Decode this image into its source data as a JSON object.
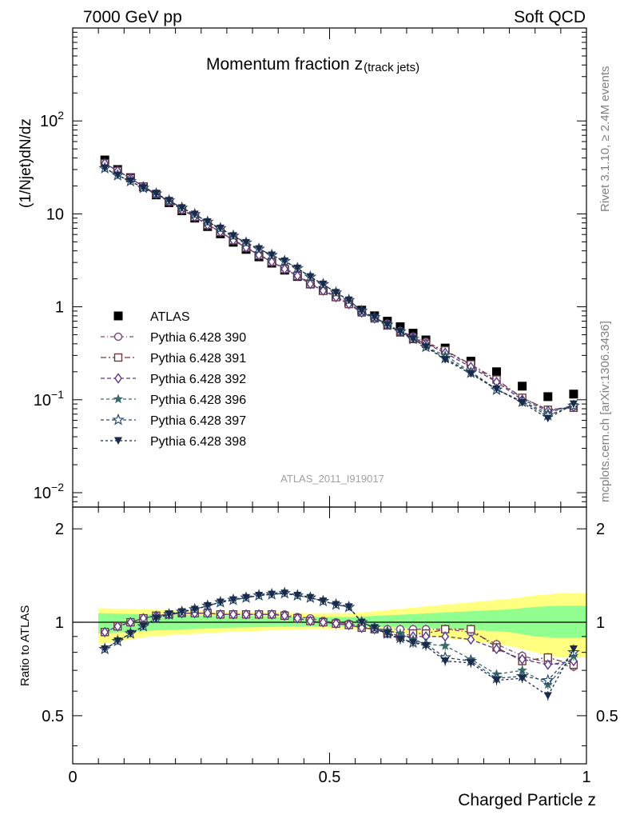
{
  "header": {
    "left": "7000 GeV pp",
    "right": "Soft QCD"
  },
  "side": {
    "top": "Rivet 3.1.10, ≥ 2.4M events",
    "bottom": "mcplots.cern.ch [arXiv:1306.3436]"
  },
  "watermark": "ATLAS_2011_I919017",
  "chart_data": [
    {
      "type": "scatter",
      "title": "Momentum fraction z",
      "title_sub": "(track jets)",
      "ylabel": "(1/Njet)dN/dz",
      "xlim": [
        0,
        1
      ],
      "ylim": [
        0.007,
        1000
      ],
      "yscale": "log",
      "yticks": [
        {
          "v": 0.01,
          "base": "10",
          "exp": "−2"
        },
        {
          "v": 0.1,
          "base": "10",
          "exp": "−1"
        },
        {
          "v": 1,
          "base": "1",
          "exp": ""
        },
        {
          "v": 10,
          "base": "10",
          "exp": ""
        },
        {
          "v": 100,
          "base": "10",
          "exp": "2"
        }
      ],
      "legend_position": "left-middle",
      "x": [
        0.0625,
        0.0875,
        0.1125,
        0.1375,
        0.1625,
        0.1875,
        0.2125,
        0.2375,
        0.2625,
        0.2875,
        0.3125,
        0.3375,
        0.3625,
        0.3875,
        0.4125,
        0.4375,
        0.4625,
        0.4875,
        0.5125,
        0.5375,
        0.5625,
        0.5875,
        0.6125,
        0.6375,
        0.6625,
        0.6875,
        0.725,
        0.775,
        0.825,
        0.875,
        0.925,
        0.975
      ],
      "series": [
        {
          "name": "ATLAS",
          "color": "#000000",
          "marker": "square-filled",
          "dash": "",
          "values": [
            38,
            30,
            24.5,
            19.5,
            16,
            13.2,
            10.8,
            9,
            7.3,
            6.1,
            4.95,
            4.15,
            3.45,
            2.95,
            2.48,
            2.12,
            1.76,
            1.5,
            1.29,
            1.11,
            0.92,
            0.8,
            0.7,
            0.61,
            0.52,
            0.44,
            0.36,
            0.26,
            0.2,
            0.14,
            0.108,
            0.115
          ]
        },
        {
          "name": "Pythia 6.428 390",
          "color": "#7a4a7a",
          "marker": "circle-open",
          "dash": "5,3,1,3",
          "values": [
            35,
            29,
            24.2,
            19.8,
            16.5,
            13.7,
            11.2,
            9.4,
            7.7,
            6.4,
            5.3,
            4.4,
            3.65,
            3.1,
            2.6,
            2.2,
            1.8,
            1.52,
            1.3,
            1.1,
            0.88,
            0.76,
            0.66,
            0.55,
            0.48,
            0.42,
            0.335,
            0.235,
            0.158,
            0.105,
            0.078,
            0.084
          ]
        },
        {
          "name": "Pythia 6.428 391",
          "color": "#6b3a3a",
          "marker": "square-open",
          "dash": "7,3,2,3",
          "values": [
            35,
            29,
            24.2,
            19.7,
            16.4,
            13.6,
            11.1,
            9.3,
            7.6,
            6.4,
            5.2,
            4.35,
            3.6,
            3.05,
            2.55,
            2.15,
            1.76,
            1.49,
            1.27,
            1.07,
            0.87,
            0.75,
            0.63,
            0.53,
            0.45,
            0.4,
            0.34,
            0.24,
            0.165,
            0.105,
            0.078,
            0.082
          ]
        },
        {
          "name": "Pythia 6.428 392",
          "color": "#5a3a8c",
          "marker": "diamond-open",
          "dash": "5,3",
          "values": [
            35,
            29,
            24.2,
            19.7,
            16.4,
            13.6,
            11.1,
            9.3,
            7.6,
            6.4,
            5.2,
            4.35,
            3.6,
            3.05,
            2.55,
            2.15,
            1.76,
            1.49,
            1.27,
            1.07,
            0.87,
            0.75,
            0.64,
            0.54,
            0.47,
            0.4,
            0.32,
            0.225,
            0.155,
            0.1,
            0.076,
            0.084
          ]
        },
        {
          "name": "Pythia 6.428 396",
          "color": "#3a6a6a",
          "marker": "star-filled",
          "dash": "4,3",
          "values": [
            31,
            26,
            22.5,
            19,
            16.5,
            13.9,
            11.6,
            9.9,
            8.2,
            7,
            5.8,
            4.9,
            4.2,
            3.6,
            3.1,
            2.6,
            2.1,
            1.75,
            1.42,
            1.18,
            0.9,
            0.77,
            0.64,
            0.54,
            0.45,
            0.37,
            0.3,
            0.2,
            0.13,
            0.096,
            0.072,
            0.088
          ]
        },
        {
          "name": "Pythia 6.428 397",
          "color": "#2a4a6a",
          "marker": "star-open",
          "dash": "4,3",
          "values": [
            31,
            26,
            22.5,
            19,
            16.5,
            13.9,
            11.6,
            9.9,
            8.2,
            7,
            5.8,
            4.9,
            4.2,
            3.6,
            3.1,
            2.6,
            2.1,
            1.75,
            1.42,
            1.18,
            0.9,
            0.77,
            0.64,
            0.54,
            0.45,
            0.37,
            0.28,
            0.195,
            0.128,
            0.095,
            0.068,
            0.086
          ]
        },
        {
          "name": "Pythia 6.428 398",
          "color": "#1a2a4a",
          "marker": "triangle-down-filled",
          "dash": "3,3",
          "values": [
            31,
            26,
            22.5,
            19,
            16.5,
            13.9,
            11.6,
            9.9,
            8.2,
            7,
            5.8,
            4.9,
            4.2,
            3.6,
            3.1,
            2.6,
            2.1,
            1.75,
            1.42,
            1.18,
            0.9,
            0.77,
            0.64,
            0.54,
            0.45,
            0.37,
            0.27,
            0.19,
            0.13,
            0.093,
            0.063,
            0.09
          ]
        }
      ]
    },
    {
      "type": "scatter",
      "ylabel": "Ratio to ATLAS",
      "xlabel": "Charged Particle z",
      "xlim": [
        0,
        1
      ],
      "ylim": [
        0.35,
        2.35
      ],
      "yscale": "log",
      "yticks": [
        {
          "v": 0.5,
          "label": "0.5"
        },
        {
          "v": 1,
          "label": "1"
        },
        {
          "v": 2,
          "label": "2"
        }
      ],
      "xticks": [
        {
          "v": 0,
          "label": "0"
        },
        {
          "v": 0.5,
          "label": "0.5"
        },
        {
          "v": 1,
          "label": "1"
        }
      ],
      "band_inner": [
        [
          0.05,
          0.92,
          1.07
        ],
        [
          0.15,
          0.94,
          1.06
        ],
        [
          0.3,
          0.96,
          1.05
        ],
        [
          0.45,
          0.97,
          1.04
        ],
        [
          0.55,
          0.97,
          1.04
        ],
        [
          0.65,
          0.96,
          1.06
        ],
        [
          0.75,
          0.95,
          1.08
        ],
        [
          0.85,
          0.93,
          1.1
        ],
        [
          0.9,
          0.9,
          1.12
        ],
        [
          0.95,
          0.89,
          1.13
        ],
        [
          1.0,
          0.89,
          1.13
        ]
      ],
      "band_outer": [
        [
          0.05,
          0.85,
          1.11
        ],
        [
          0.15,
          0.9,
          1.1
        ],
        [
          0.3,
          0.93,
          1.08
        ],
        [
          0.45,
          0.95,
          1.07
        ],
        [
          0.55,
          0.95,
          1.07
        ],
        [
          0.65,
          0.92,
          1.11
        ],
        [
          0.75,
          0.88,
          1.15
        ],
        [
          0.85,
          0.84,
          1.19
        ],
        [
          0.9,
          0.8,
          1.22
        ],
        [
          0.95,
          0.77,
          1.24
        ],
        [
          1.0,
          0.77,
          1.24
        ]
      ],
      "series": [
        {
          "name": "Pythia 6.428 390",
          "values": [
            0.93,
            0.97,
            1.0,
            1.03,
            1.05,
            1.06,
            1.07,
            1.07,
            1.07,
            1.06,
            1.06,
            1.06,
            1.06,
            1.06,
            1.06,
            1.04,
            1.03,
            1.01,
            1.0,
            0.99,
            0.97,
            0.95,
            0.95,
            0.95,
            0.95,
            0.95,
            0.95,
            0.93,
            0.85,
            0.78,
            0.74,
            0.72
          ]
        },
        {
          "name": "Pythia 6.428 391",
          "values": [
            0.93,
            0.97,
            1.0,
            1.03,
            1.05,
            1.06,
            1.07,
            1.07,
            1.07,
            1.06,
            1.06,
            1.06,
            1.06,
            1.06,
            1.05,
            1.03,
            1.01,
            1.0,
            0.99,
            0.98,
            0.96,
            0.95,
            0.92,
            0.9,
            0.92,
            0.92,
            0.95,
            0.95,
            0.83,
            0.75,
            0.77,
            0.73
          ]
        },
        {
          "name": "Pythia 6.428 392",
          "values": [
            0.93,
            0.97,
            1.0,
            1.03,
            1.05,
            1.06,
            1.07,
            1.07,
            1.07,
            1.06,
            1.06,
            1.06,
            1.06,
            1.06,
            1.05,
            1.03,
            1.01,
            1.0,
            0.99,
            0.98,
            0.96,
            0.95,
            0.93,
            0.9,
            0.9,
            0.9,
            0.9,
            0.88,
            0.82,
            0.76,
            0.73,
            0.75
          ]
        },
        {
          "name": "Pythia 6.428 396",
          "values": [
            0.82,
            0.87,
            0.92,
            0.97,
            1.03,
            1.06,
            1.08,
            1.1,
            1.13,
            1.16,
            1.18,
            1.2,
            1.22,
            1.23,
            1.24,
            1.22,
            1.2,
            1.17,
            1.14,
            1.12,
            1.0,
            0.96,
            0.94,
            0.92,
            0.88,
            0.85,
            0.84,
            0.76,
            0.68,
            0.7,
            0.63,
            0.78
          ]
        },
        {
          "name": "Pythia 6.428 397",
          "values": [
            0.82,
            0.87,
            0.92,
            0.97,
            1.03,
            1.06,
            1.08,
            1.1,
            1.13,
            1.16,
            1.18,
            1.2,
            1.22,
            1.23,
            1.24,
            1.22,
            1.2,
            1.17,
            1.14,
            1.12,
            1.0,
            0.96,
            0.92,
            0.89,
            0.86,
            0.85,
            0.77,
            0.75,
            0.66,
            0.67,
            0.65,
            0.8
          ]
        },
        {
          "name": "Pythia 6.428 398",
          "values": [
            0.82,
            0.87,
            0.92,
            0.97,
            1.03,
            1.06,
            1.08,
            1.1,
            1.13,
            1.16,
            1.18,
            1.2,
            1.22,
            1.23,
            1.24,
            1.22,
            1.2,
            1.17,
            1.14,
            1.12,
            1.0,
            0.96,
            0.92,
            0.88,
            0.86,
            0.84,
            0.75,
            0.74,
            0.65,
            0.66,
            0.58,
            0.82
          ]
        }
      ]
    }
  ]
}
